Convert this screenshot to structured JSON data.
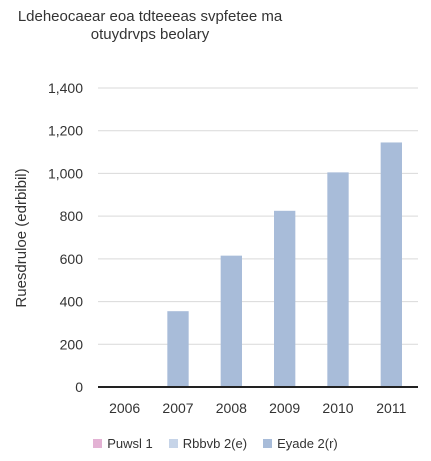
{
  "chart_data": {
    "type": "bar",
    "title": "Ldeheocaear eoa tdteeeas svpfetee ma otuydrvps beolary",
    "title_lines": [
      "Ldeheocaear eoa tdteeeas svpfetee ma",
      "otuydrvps beolary"
    ],
    "ylabel": "Ruesdruloe (edrbibil)",
    "xlabel": "",
    "categories": [
      "2006",
      "2007",
      "2008",
      "2009",
      "2010",
      "2011"
    ],
    "ylim": [
      0,
      1400
    ],
    "yticks": [
      0,
      200,
      400,
      600,
      800,
      1000,
      1200,
      1400
    ],
    "ytick_labels": [
      "0",
      "200",
      "400",
      "600",
      "800",
      "1,000",
      "1,200",
      "1,400"
    ],
    "grid": "horizontal",
    "legend_position": "bottom",
    "series": [
      {
        "name": "Puwsl 1",
        "color": "#e3b2d4",
        "values": [
          0,
          0,
          0,
          0,
          0,
          0
        ]
      },
      {
        "name": "Rbbvb 2(e)",
        "color": "#c6d4e8",
        "values": [
          0,
          0,
          0,
          0,
          0,
          0
        ]
      },
      {
        "name": "Eyade 2(r)",
        "color": "#a8bcd9",
        "values": [
          0,
          355,
          615,
          825,
          1005,
          1145
        ]
      }
    ]
  }
}
